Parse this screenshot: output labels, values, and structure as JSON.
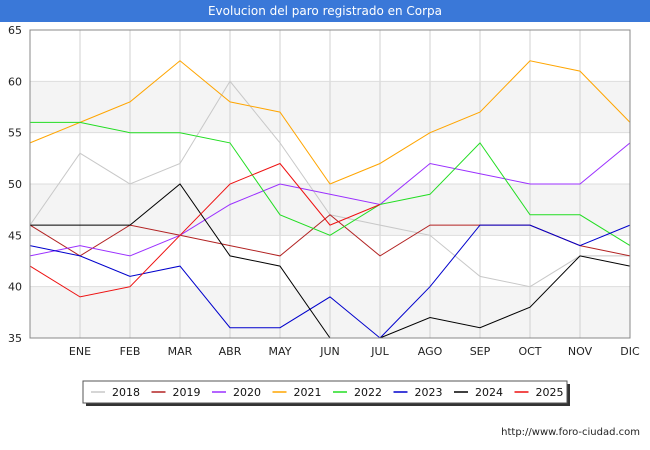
{
  "title": "Evolucion del paro registrado en Corpa",
  "credit": "http://www.foro-ciudad.com",
  "chart_data": {
    "type": "line",
    "title": "Evolucion del paro registrado en Corpa",
    "xlabel": "",
    "ylabel": "",
    "ylim": [
      35,
      65
    ],
    "yticks": [
      35,
      40,
      45,
      50,
      55,
      60,
      65
    ],
    "grid": true,
    "legend_position": "bottom",
    "categories": [
      "",
      "ENE",
      "FEB",
      "MAR",
      "ABR",
      "MAY",
      "JUN",
      "JUL",
      "AGO",
      "SEP",
      "OCT",
      "NOV",
      "DIC"
    ],
    "series": [
      {
        "name": "2018",
        "color": "#c8c8c8",
        "values": [
          46,
          53,
          50,
          52,
          60,
          54,
          47,
          46,
          45,
          41,
          40,
          43,
          43
        ]
      },
      {
        "name": "2019",
        "color": "#b22222",
        "values": [
          46,
          43,
          46,
          45,
          44,
          43,
          47,
          43,
          46,
          46,
          46,
          44,
          43
        ]
      },
      {
        "name": "2020",
        "color": "#9b30ff",
        "values": [
          43,
          44,
          43,
          45,
          48,
          50,
          49,
          48,
          52,
          51,
          50,
          50,
          54
        ]
      },
      {
        "name": "2021",
        "color": "#ffa500",
        "values": [
          54,
          56,
          58,
          62,
          58,
          57,
          50,
          52,
          55,
          57,
          62,
          61,
          56
        ]
      },
      {
        "name": "2022",
        "color": "#22dd22",
        "values": [
          56,
          56,
          55,
          55,
          54,
          47,
          45,
          48,
          49,
          54,
          47,
          47,
          44
        ]
      },
      {
        "name": "2023",
        "color": "#0000cc",
        "values": [
          44,
          43,
          41,
          42,
          36,
          36,
          39,
          35,
          40,
          46,
          46,
          44,
          46
        ]
      },
      {
        "name": "2024",
        "color": "#000000",
        "values": [
          46,
          46,
          46,
          50,
          43,
          42,
          35,
          35,
          37,
          36,
          38,
          43,
          42
        ]
      },
      {
        "name": "2025",
        "color": "#ee1111",
        "values": [
          42,
          39,
          40,
          45,
          50,
          52,
          46,
          48,
          null,
          null,
          null,
          null,
          null
        ]
      }
    ]
  }
}
